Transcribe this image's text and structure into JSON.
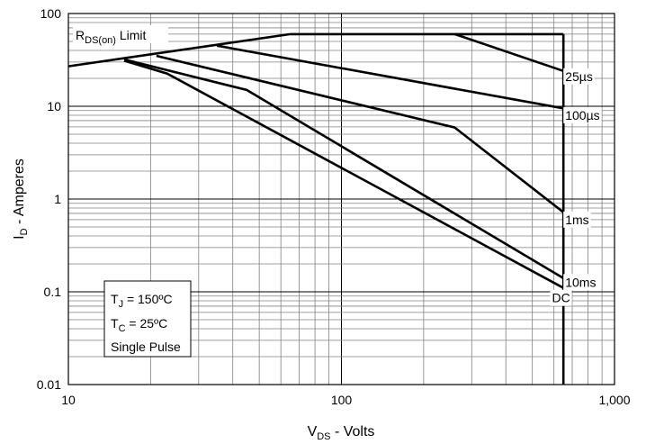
{
  "chart_data": {
    "type": "line",
    "x_scale": "log",
    "y_scale": "log",
    "xlim": [
      10,
      1000
    ],
    "ylim": [
      0.01,
      100
    ],
    "grid": true,
    "x_ticks": [
      {
        "value": 10,
        "label": "10"
      },
      {
        "value": 100,
        "label": "100"
      },
      {
        "value": 1000,
        "label": "1,000"
      }
    ],
    "y_ticks": [
      {
        "value": 0.01,
        "label": "0.01"
      },
      {
        "value": 0.1,
        "label": "0.1"
      },
      {
        "value": 1,
        "label": "1"
      },
      {
        "value": 10,
        "label": "10"
      },
      {
        "value": 100,
        "label": "100"
      }
    ],
    "xlabel": {
      "main": "V",
      "sub": "DS",
      "rest": " - Volts"
    },
    "ylabel": {
      "main": "I",
      "sub": "D",
      "rest": " - Amperes"
    },
    "series": [
      {
        "name": "25µs",
        "points": [
          [
            260,
            60
          ],
          [
            650,
            24
          ]
        ]
      },
      {
        "name": "100µs",
        "points": [
          [
            35,
            45
          ],
          [
            650,
            9.5
          ]
        ]
      },
      {
        "name": "1ms",
        "points": [
          [
            21,
            35
          ],
          [
            260,
            5.9
          ],
          [
            650,
            0.72
          ]
        ]
      },
      {
        "name": "10ms",
        "points": [
          [
            16,
            32
          ],
          [
            45,
            15
          ],
          [
            650,
            0.14
          ]
        ]
      },
      {
        "name": "DC",
        "points": [
          [
            16,
            31
          ],
          [
            23,
            22.5
          ],
          [
            650,
            0.11
          ]
        ]
      }
    ],
    "boundaries": [
      {
        "name": "rds_on_limit",
        "points": [
          [
            10,
            27
          ],
          [
            65,
            60
          ]
        ]
      },
      {
        "name": "current_limit",
        "points": [
          [
            65,
            60
          ],
          [
            650,
            60
          ]
        ]
      },
      {
        "name": "voltage_limit",
        "points": [
          [
            650,
            60
          ],
          [
            650,
            0.01
          ]
        ]
      }
    ],
    "series_labels": [
      {
        "series": "25µs",
        "x": 660,
        "y": 21
      },
      {
        "series": "100µs",
        "x": 660,
        "y": 8
      },
      {
        "series": "1ms",
        "x": 660,
        "y": 0.6
      },
      {
        "series": "10ms",
        "x": 660,
        "y": 0.127
      },
      {
        "series": "DC",
        "x": 590,
        "y": 0.086
      }
    ],
    "rds_label": {
      "main": "R",
      "sub": "DS(on)",
      "rest": " Limit"
    },
    "conditions": {
      "tj": {
        "main": "T",
        "sub": "J",
        "rest": " = 150ºC"
      },
      "tc": {
        "main": "T",
        "sub": "C",
        "rest": " = 25ºC"
      },
      "pulse": "Single Pulse"
    },
    "colors": {
      "line": "#000000",
      "grid_major": "#000000",
      "grid_minor": "#808080",
      "background": "#ffffff"
    }
  }
}
